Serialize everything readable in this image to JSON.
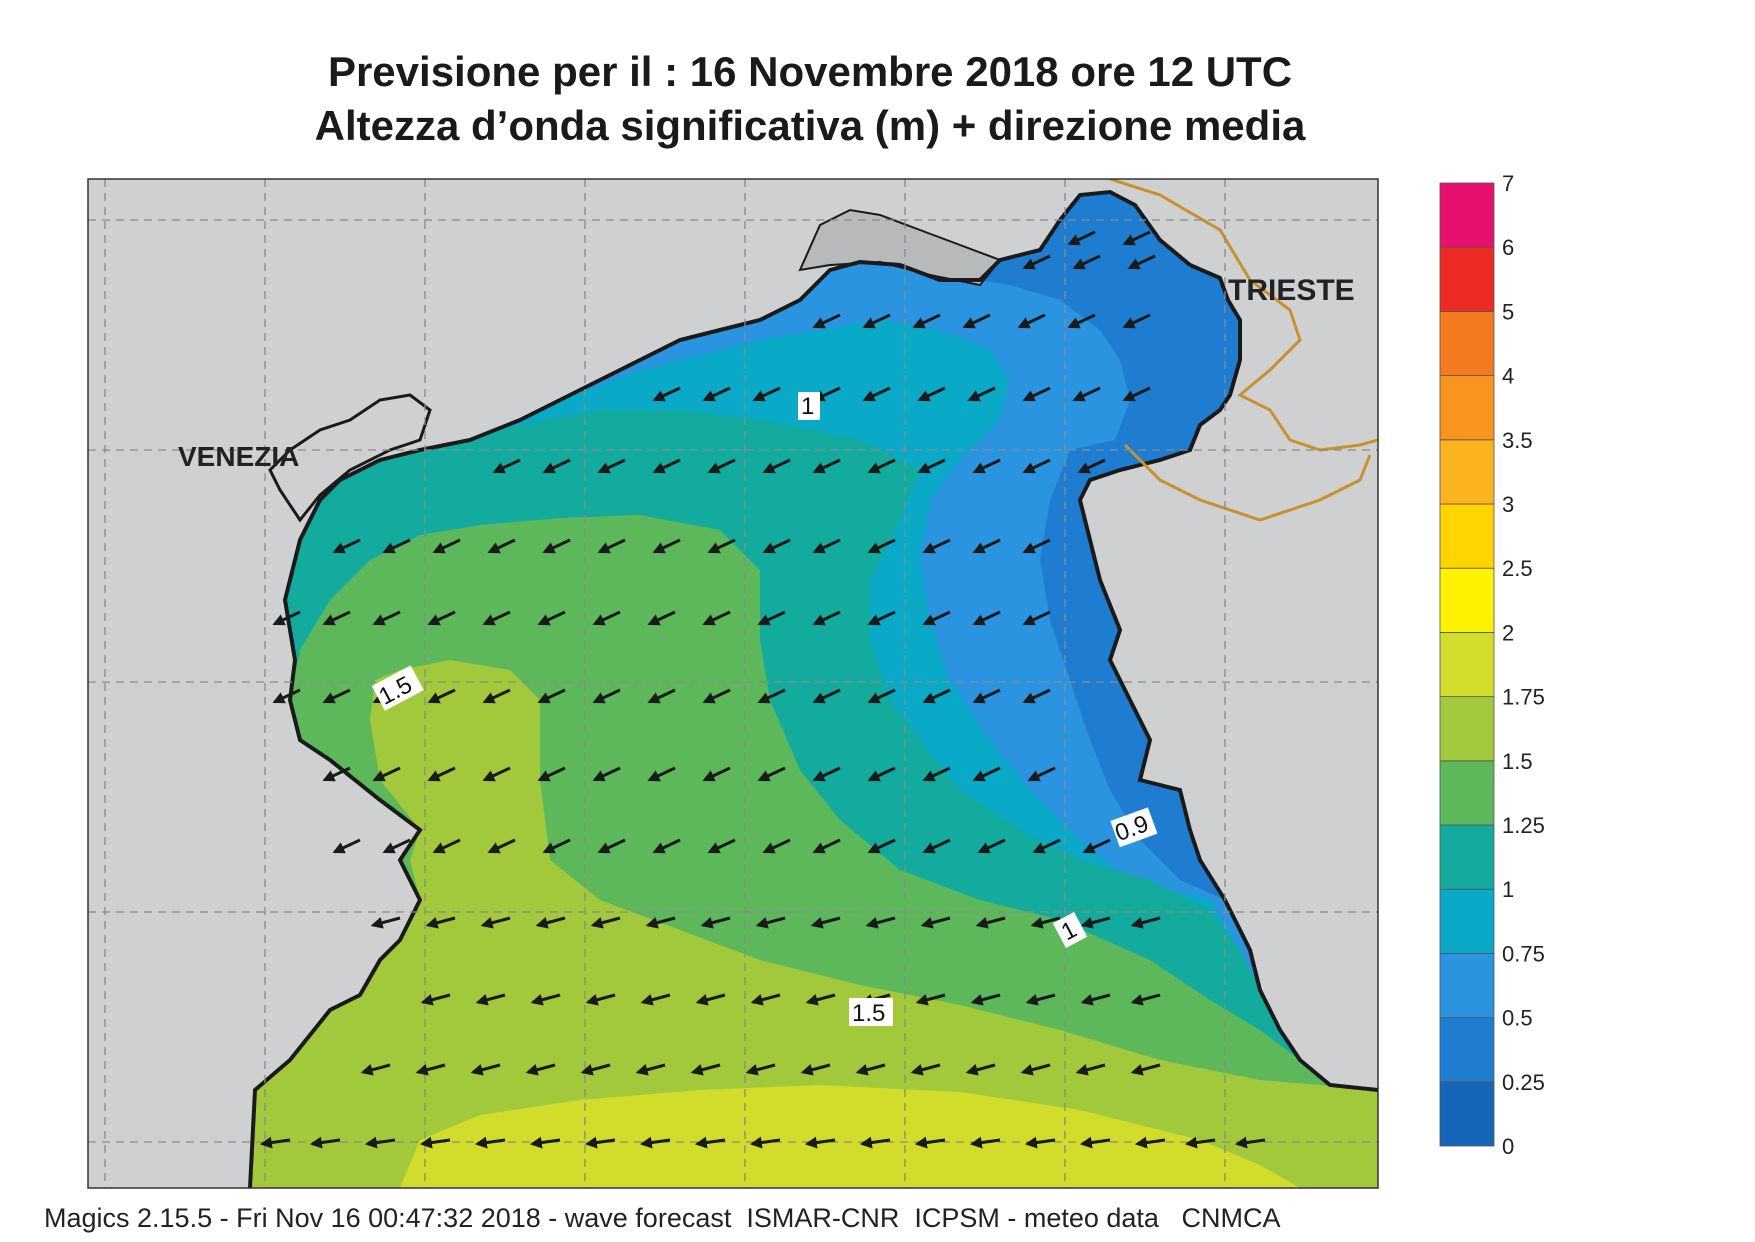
{
  "title_line1": "Previsione per il  :  16 Novembre  2018   ore 12 UTC",
  "title_line2": "Altezza d’onda significativa (m) + direzione media",
  "places": [
    {
      "name": "VENEZIA"
    },
    {
      "name": "TRIESTE"
    }
  ],
  "contour_labels": [
    "1",
    "1.5",
    "0.9",
    "1",
    "1.5"
  ],
  "legend": {
    "ticks": [
      "0",
      "0.25",
      "0.5",
      "0.75",
      "1",
      "1.25",
      "1.5",
      "1.75",
      "2",
      "2.5",
      "3",
      "3.5",
      "4",
      "5",
      "6",
      "7"
    ],
    "colors": [
      "#1565b8",
      "#1e7dd0",
      "#2b94e0",
      "#0aa9c8",
      "#12ab9e",
      "#5cb85a",
      "#a2c93c",
      "#d2dc2a",
      "#fff200",
      "#ffd400",
      "#fbb31e",
      "#f8951e",
      "#f47a20",
      "#ee2a24",
      "#e8106e"
    ]
  },
  "colors": {
    "land": "#cfd0d2",
    "coast": "#1a1a1a",
    "border": "#c8912b",
    "arrow": "#1a1a1a",
    "grid": "#8a8a8a"
  },
  "wave_direction": "toward west-southwest",
  "footer": "Magics 2.15.5 - Fri Nov 16 00:47:32 2018 - wave forecast  ISMAR-CNR  ICPSM - meteo data   CNMCA"
}
